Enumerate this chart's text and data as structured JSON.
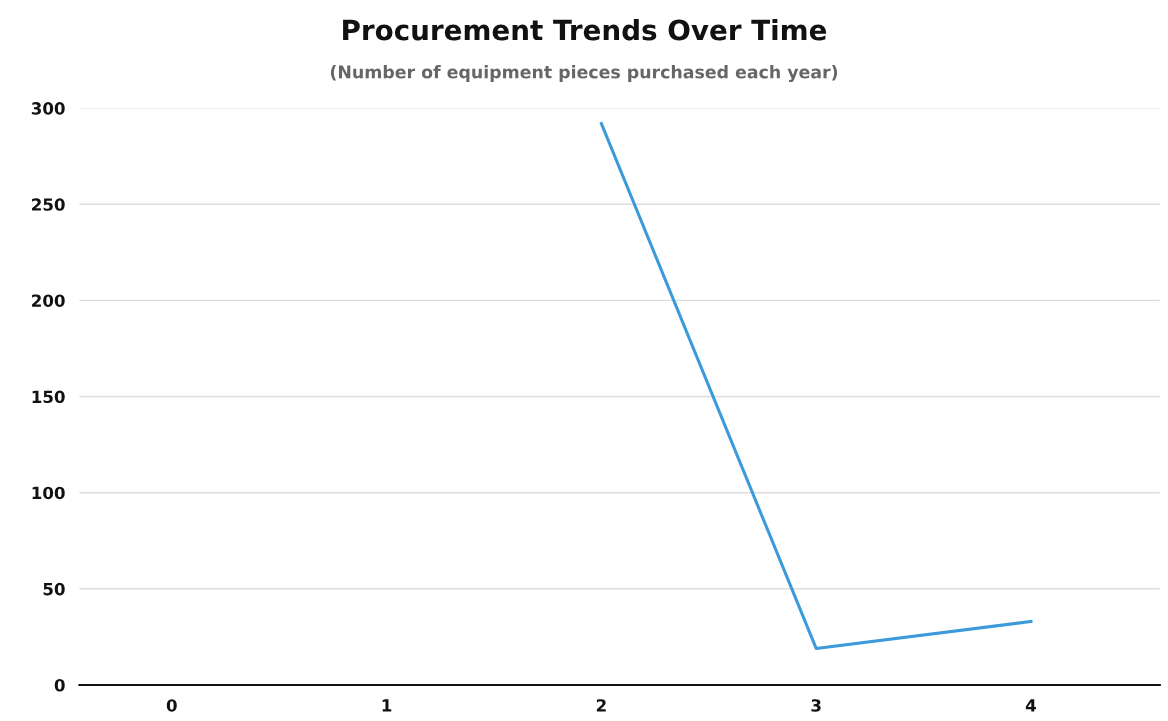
{
  "chart_data": {
    "type": "line",
    "title": "Procurement Trends Over Time",
    "subtitle": "(Number of equipment pieces purchased each year)",
    "categories": [
      "0",
      "1",
      "2",
      "3",
      "4"
    ],
    "series": [
      {
        "color": "#3b9ad9",
        "values": [
          null,
          null,
          292,
          19,
          33
        ]
      }
    ],
    "ylim": [
      0,
      300
    ],
    "yticks": [
      0,
      50,
      100,
      150,
      200,
      250,
      300
    ],
    "grid": "y",
    "marker": "none",
    "line_style": "solid"
  }
}
